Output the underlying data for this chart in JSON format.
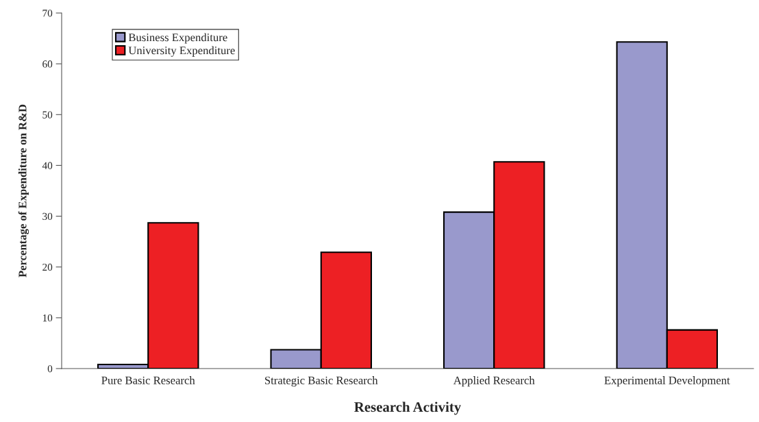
{
  "chart_data": {
    "type": "bar",
    "xlabel": "Research Activity",
    "ylabel": "Percentage of Expenditure on R&D",
    "categories": [
      "Pure Basic Research",
      "Strategic Basic Research",
      "Applied Research",
      "Experimental Development"
    ],
    "series": [
      {
        "name": "Business Expenditure",
        "color": "#9999cc",
        "values": [
          0.8,
          3.7,
          30.8,
          64.3
        ]
      },
      {
        "name": "University Expenditure",
        "color": "#ed2024",
        "values": [
          28.7,
          22.9,
          40.7,
          7.6
        ]
      }
    ],
    "ylim": [
      0,
      70
    ],
    "yticks": [
      0,
      10,
      20,
      30,
      40,
      50,
      60,
      70
    ],
    "grid": false,
    "legend": "top left"
  }
}
